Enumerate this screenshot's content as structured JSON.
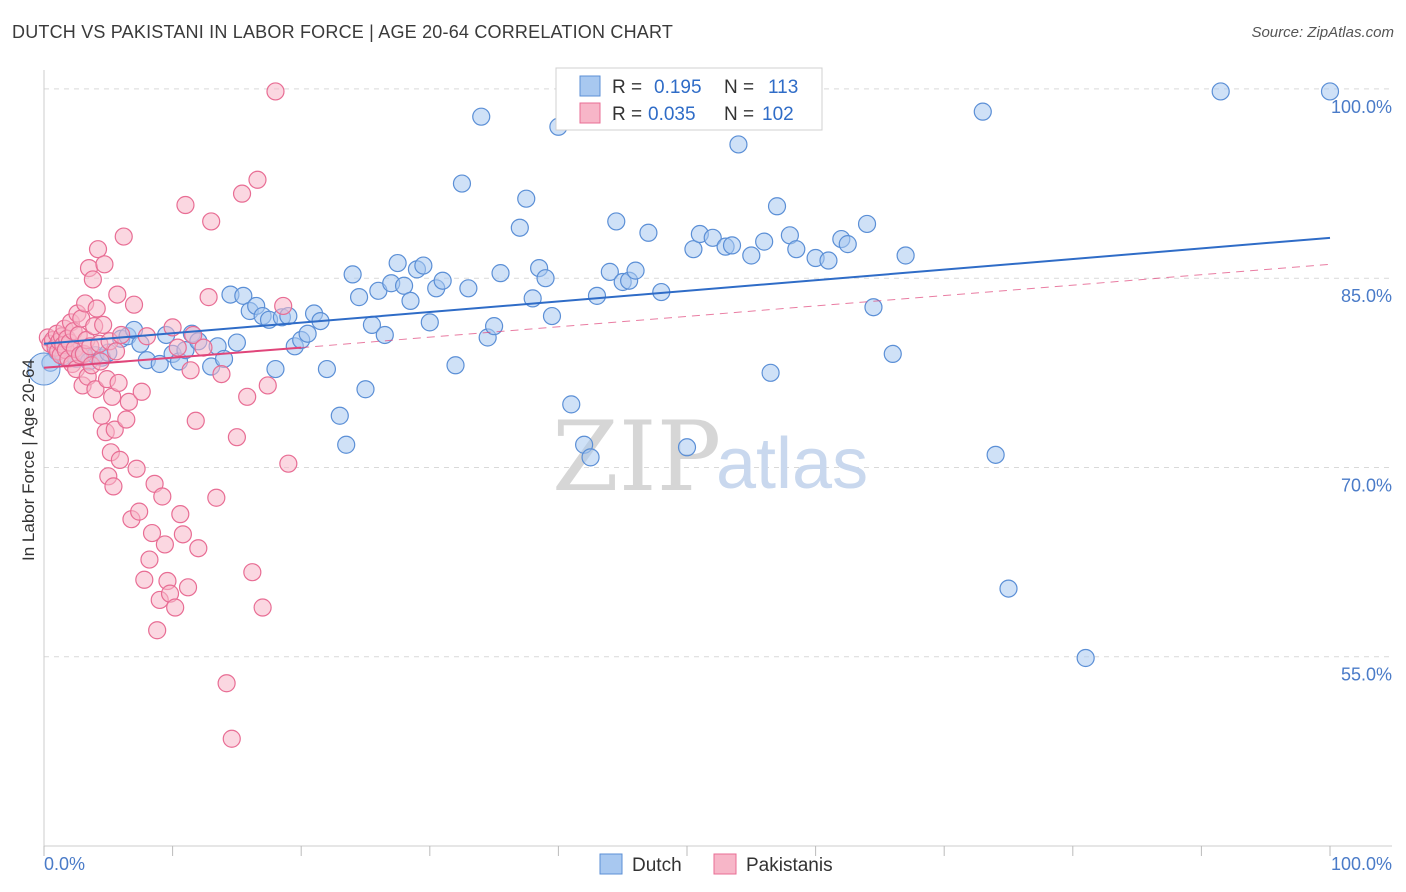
{
  "title": "DUTCH VS PAKISTANI IN LABOR FORCE | AGE 20-64 CORRELATION CHART",
  "source": "Source: ZipAtlas.com",
  "watermark": {
    "zip": "ZIP",
    "atlas": "atlas"
  },
  "colors": {
    "dutch_fill": "#a8c8f0",
    "dutch_stroke": "#5b8fd6",
    "dutch_line": "#2f6cc7",
    "pak_fill": "#f7b6c8",
    "pak_stroke": "#e86d94",
    "pak_line": "#e0457a",
    "grid": "#d9d9d9",
    "axis_text": "#4a7bc8"
  },
  "legend": {
    "rows": [
      {
        "r_label": "R =",
        "r_value": "0.195",
        "n_label": "N =",
        "n_value": "113",
        "series": "dutch"
      },
      {
        "r_label": "R =",
        "r_value": "0.035",
        "n_label": "N =",
        "n_value": "102",
        "series": "pakistani"
      }
    ]
  },
  "bottom_legend": [
    "Dutch",
    "Pakistanis"
  ],
  "chart_data": {
    "type": "scatter",
    "title": "DUTCH VS PAKISTANI IN LABOR FORCE | AGE 20-64 CORRELATION CHART",
    "xlabel": "",
    "ylabel": "In Labor Force | Age 20-64",
    "xlim": [
      0,
      100
    ],
    "ylim": [
      40,
      101.5
    ],
    "x_tick_labels": [
      "0.0%",
      "100.0%"
    ],
    "y_ticks": [
      55,
      70,
      85,
      100
    ],
    "y_tick_labels": [
      "55.0%",
      "70.0%",
      "85.0%",
      "100.0%"
    ],
    "grid": true,
    "legend_position": "top-center",
    "series": [
      {
        "name": "Dutch",
        "trend": {
          "x": [
            0,
            100
          ],
          "y": [
            79.8,
            88.2
          ],
          "style": "solid"
        },
        "points": [
          [
            0.5,
            78.3
          ],
          [
            1,
            79.2
          ],
          [
            1.5,
            78.8
          ],
          [
            2,
            79.5
          ],
          [
            2.5,
            78.6
          ],
          [
            3,
            79.0
          ],
          [
            3.5,
            78.4
          ],
          [
            4,
            78.9
          ],
          [
            4.5,
            78.7
          ],
          [
            5,
            79.1
          ],
          [
            6,
            80.2
          ],
          [
            6.5,
            80.4
          ],
          [
            7,
            80.9
          ],
          [
            7.5,
            79.8
          ],
          [
            8,
            78.5
          ],
          [
            9,
            78.2
          ],
          [
            9.5,
            80.5
          ],
          [
            10,
            79.0
          ],
          [
            10.5,
            78.4
          ],
          [
            11,
            79.3
          ],
          [
            11.5,
            80.6
          ],
          [
            12,
            80.0
          ],
          [
            13,
            78.0
          ],
          [
            13.5,
            79.6
          ],
          [
            14,
            78.6
          ],
          [
            14.5,
            83.7
          ],
          [
            15,
            79.9
          ],
          [
            15.5,
            83.6
          ],
          [
            16,
            82.4
          ],
          [
            16.5,
            82.8
          ],
          [
            17,
            82.0
          ],
          [
            17.5,
            81.7
          ],
          [
            18,
            77.8
          ],
          [
            18.5,
            81.9
          ],
          [
            19,
            82.0
          ],
          [
            19.5,
            79.6
          ],
          [
            20,
            80.1
          ],
          [
            20.5,
            80.6
          ],
          [
            21,
            82.2
          ],
          [
            21.5,
            81.6
          ],
          [
            22,
            77.8
          ],
          [
            23,
            74.1
          ],
          [
            23.5,
            71.8
          ],
          [
            24,
            85.3
          ],
          [
            24.5,
            83.5
          ],
          [
            25,
            76.2
          ],
          [
            25.5,
            81.3
          ],
          [
            26,
            84.0
          ],
          [
            26.5,
            80.5
          ],
          [
            27,
            84.6
          ],
          [
            27.5,
            86.2
          ],
          [
            28,
            84.4
          ],
          [
            28.5,
            83.2
          ],
          [
            29,
            85.7
          ],
          [
            29.5,
            86.0
          ],
          [
            30,
            81.5
          ],
          [
            30.5,
            84.2
          ],
          [
            31,
            84.8
          ],
          [
            32,
            78.1
          ],
          [
            32.5,
            92.5
          ],
          [
            33,
            84.2
          ],
          [
            34,
            97.8
          ],
          [
            34.5,
            80.3
          ],
          [
            35,
            81.2
          ],
          [
            35.5,
            85.4
          ],
          [
            37,
            89.0
          ],
          [
            37.5,
            91.3
          ],
          [
            38,
            83.4
          ],
          [
            38.5,
            85.8
          ],
          [
            39,
            85.0
          ],
          [
            39.5,
            82.0
          ],
          [
            40,
            97.0
          ],
          [
            41,
            75.0
          ],
          [
            42,
            71.8
          ],
          [
            42.5,
            70.8
          ],
          [
            43,
            83.6
          ],
          [
            44,
            85.5
          ],
          [
            44.5,
            89.5
          ],
          [
            45,
            84.7
          ],
          [
            45.5,
            84.8
          ],
          [
            46,
            85.6
          ],
          [
            47,
            88.6
          ],
          [
            48,
            83.9
          ],
          [
            50,
            71.6
          ],
          [
            50.5,
            87.3
          ],
          [
            51,
            88.5
          ],
          [
            52,
            88.2
          ],
          [
            53,
            87.5
          ],
          [
            53.5,
            87.6
          ],
          [
            54,
            95.6
          ],
          [
            55,
            86.8
          ],
          [
            56,
            87.9
          ],
          [
            56.5,
            77.5
          ],
          [
            57,
            90.7
          ],
          [
            58,
            88.4
          ],
          [
            58.5,
            87.3
          ],
          [
            60,
            86.6
          ],
          [
            61,
            86.4
          ],
          [
            62,
            88.1
          ],
          [
            62.5,
            87.7
          ],
          [
            64,
            89.3
          ],
          [
            64.5,
            82.7
          ],
          [
            66,
            79.0
          ],
          [
            67,
            86.8
          ],
          [
            73,
            98.2
          ],
          [
            74,
            71.0
          ],
          [
            75,
            60.4
          ],
          [
            81,
            54.9
          ],
          [
            91.5,
            99.8
          ],
          [
            100,
            99.8
          ]
        ]
      },
      {
        "name": "Pakistanis",
        "trend": {
          "x": [
            0,
            20
          ],
          "y": [
            77.9,
            79.5
          ],
          "style": "solid"
        },
        "trend_extension": {
          "x": [
            20,
            100
          ],
          "y": [
            79.5,
            86.1
          ],
          "style": "dashed"
        },
        "points": [
          [
            0.3,
            80.3
          ],
          [
            0.5,
            79.8
          ],
          [
            0.7,
            80.1
          ],
          [
            0.9,
            79.5
          ],
          [
            1.0,
            80.6
          ],
          [
            1.1,
            79.2
          ],
          [
            1.2,
            80.0
          ],
          [
            1.3,
            78.9
          ],
          [
            1.4,
            80.4
          ],
          [
            1.5,
            79.7
          ],
          [
            1.6,
            81.0
          ],
          [
            1.7,
            79.3
          ],
          [
            1.8,
            80.2
          ],
          [
            1.9,
            78.6
          ],
          [
            2.0,
            79.9
          ],
          [
            2.1,
            81.5
          ],
          [
            2.2,
            78.2
          ],
          [
            2.3,
            80.8
          ],
          [
            2.4,
            79.4
          ],
          [
            2.5,
            77.8
          ],
          [
            2.6,
            82.2
          ],
          [
            2.7,
            80.5
          ],
          [
            2.8,
            78.9
          ],
          [
            2.9,
            81.8
          ],
          [
            3.0,
            76.5
          ],
          [
            3.1,
            79.0
          ],
          [
            3.2,
            83.0
          ],
          [
            3.3,
            80.1
          ],
          [
            3.4,
            77.2
          ],
          [
            3.5,
            85.8
          ],
          [
            3.6,
            79.6
          ],
          [
            3.7,
            78.1
          ],
          [
            3.8,
            84.9
          ],
          [
            3.9,
            81.2
          ],
          [
            4.0,
            76.2
          ],
          [
            4.1,
            82.6
          ],
          [
            4.2,
            87.3
          ],
          [
            4.3,
            79.8
          ],
          [
            4.4,
            78.4
          ],
          [
            4.5,
            74.1
          ],
          [
            4.6,
            81.3
          ],
          [
            4.7,
            86.1
          ],
          [
            4.8,
            72.8
          ],
          [
            4.9,
            77.0
          ],
          [
            5.0,
            69.3
          ],
          [
            5.1,
            80.0
          ],
          [
            5.2,
            71.2
          ],
          [
            5.3,
            75.6
          ],
          [
            5.4,
            68.5
          ],
          [
            5.5,
            73.0
          ],
          [
            5.6,
            79.2
          ],
          [
            5.7,
            83.7
          ],
          [
            5.8,
            76.7
          ],
          [
            5.9,
            70.6
          ],
          [
            6.0,
            80.5
          ],
          [
            6.2,
            88.3
          ],
          [
            6.4,
            73.8
          ],
          [
            6.6,
            75.2
          ],
          [
            6.8,
            65.9
          ],
          [
            7.0,
            82.9
          ],
          [
            7.2,
            69.9
          ],
          [
            7.4,
            66.5
          ],
          [
            7.6,
            76.0
          ],
          [
            7.8,
            61.1
          ],
          [
            8.0,
            80.4
          ],
          [
            8.2,
            62.7
          ],
          [
            8.4,
            64.8
          ],
          [
            8.6,
            68.7
          ],
          [
            8.8,
            57.1
          ],
          [
            9.0,
            59.5
          ],
          [
            9.2,
            67.7
          ],
          [
            9.4,
            63.9
          ],
          [
            9.6,
            61.0
          ],
          [
            9.8,
            60.0
          ],
          [
            10.0,
            81.1
          ],
          [
            10.2,
            58.9
          ],
          [
            10.4,
            79.5
          ],
          [
            10.6,
            66.3
          ],
          [
            10.8,
            64.7
          ],
          [
            11.0,
            90.8
          ],
          [
            11.2,
            60.5
          ],
          [
            11.4,
            77.7
          ],
          [
            11.6,
            80.5
          ],
          [
            11.8,
            73.7
          ],
          [
            12.0,
            63.6
          ],
          [
            12.4,
            79.5
          ],
          [
            12.8,
            83.5
          ],
          [
            13.0,
            89.5
          ],
          [
            13.4,
            67.6
          ],
          [
            13.8,
            77.4
          ],
          [
            14.2,
            52.9
          ],
          [
            14.6,
            48.5
          ],
          [
            15.0,
            72.4
          ],
          [
            15.4,
            91.7
          ],
          [
            15.8,
            75.6
          ],
          [
            16.2,
            61.7
          ],
          [
            16.6,
            92.8
          ],
          [
            17.0,
            58.9
          ],
          [
            17.4,
            76.5
          ],
          [
            18.0,
            99.8
          ],
          [
            18.6,
            82.8
          ],
          [
            19.0,
            70.3
          ]
        ]
      }
    ]
  }
}
